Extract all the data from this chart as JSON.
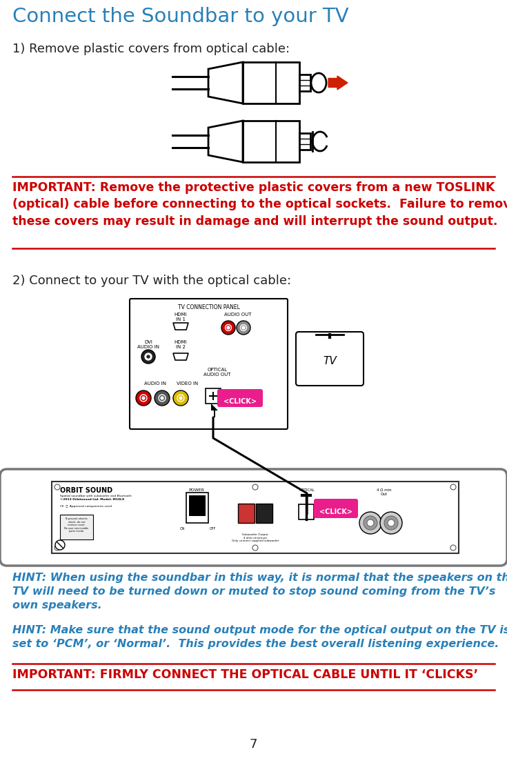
{
  "title": "Connect the Soundbar to your TV",
  "title_color": "#2980b9",
  "bg_color": "#ffffff",
  "step1_label": "1) Remove plastic covers from optical cable:",
  "important1_text": "IMPORTANT: Remove the protective plastic covers from a new TOSLINK\n(optical) cable before connecting to the optical sockets.  Failure to remove\nthese covers may result in damage and will interrupt the sound output.",
  "important1_color": "#cc0000",
  "step2_label": "2) Connect to your TV with the optical cable:",
  "hint1_text": "HINT: When using the soundbar in this way, it is normal that the speakers on the\nTV will need to be turned down or muted to stop sound coming from the TV’s\nown speakers.",
  "hint2_text": "HINT: Make sure that the sound output mode for the optical output on the TV is\nset to ‘PCM’, or ‘Normal’.  This provides the best overall listening experience.",
  "hint_color": "#2980b9",
  "important2_text": "IMPORTANT: FIRMLY CONNECT THE OPTICAL CABLE UNTIL IT ‘CLICKS’",
  "important2_color": "#cc0000",
  "page_number": "7",
  "text_color": "#222222",
  "line_color": "#cc0000"
}
